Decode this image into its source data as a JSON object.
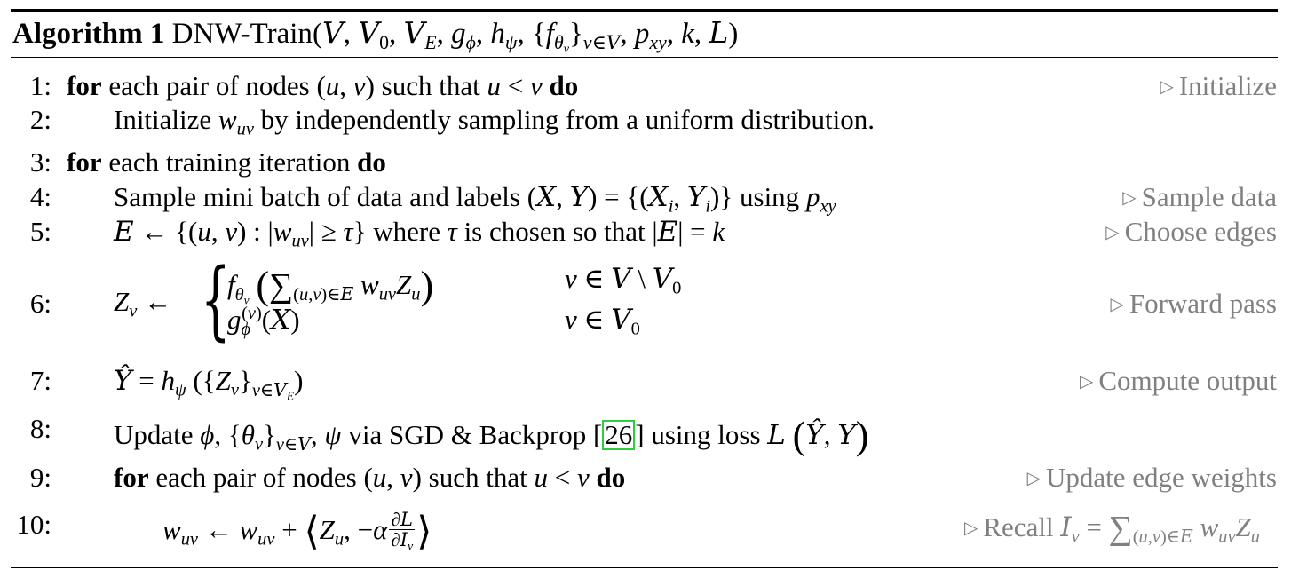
{
  "header": {
    "label": "Algorithm 1",
    "name": "DNW-Train",
    "args": "(𝒱, 𝒱₀, 𝒱_E, g_ϕ, h_ψ, {f_θv}_v∈𝒱, p_xy, k, ℒ)"
  },
  "lines": [
    {
      "num": "1:",
      "comment": "Initialize"
    },
    {
      "num": "2:",
      "text": "Initialize w_uv by independently sampling from a uniform distribution."
    },
    {
      "num": "3:"
    },
    {
      "num": "4:",
      "comment": "Sample data"
    },
    {
      "num": "5:",
      "comment": "Choose edges"
    },
    {
      "num": "6:",
      "comment": "Forward pass"
    },
    {
      "num": "7:",
      "comment": "Compute output"
    },
    {
      "num": "8:",
      "cite": "26"
    },
    {
      "num": "9:",
      "comment": "Update edge weights"
    },
    {
      "num": "10:",
      "comment": "Recall"
    }
  ],
  "keywords": {
    "for": "for",
    "do": "do"
  },
  "comment_symbol": "▷",
  "colors": {
    "comment": "#808080",
    "citation_box": "#2ecc40",
    "text": "#000000"
  }
}
